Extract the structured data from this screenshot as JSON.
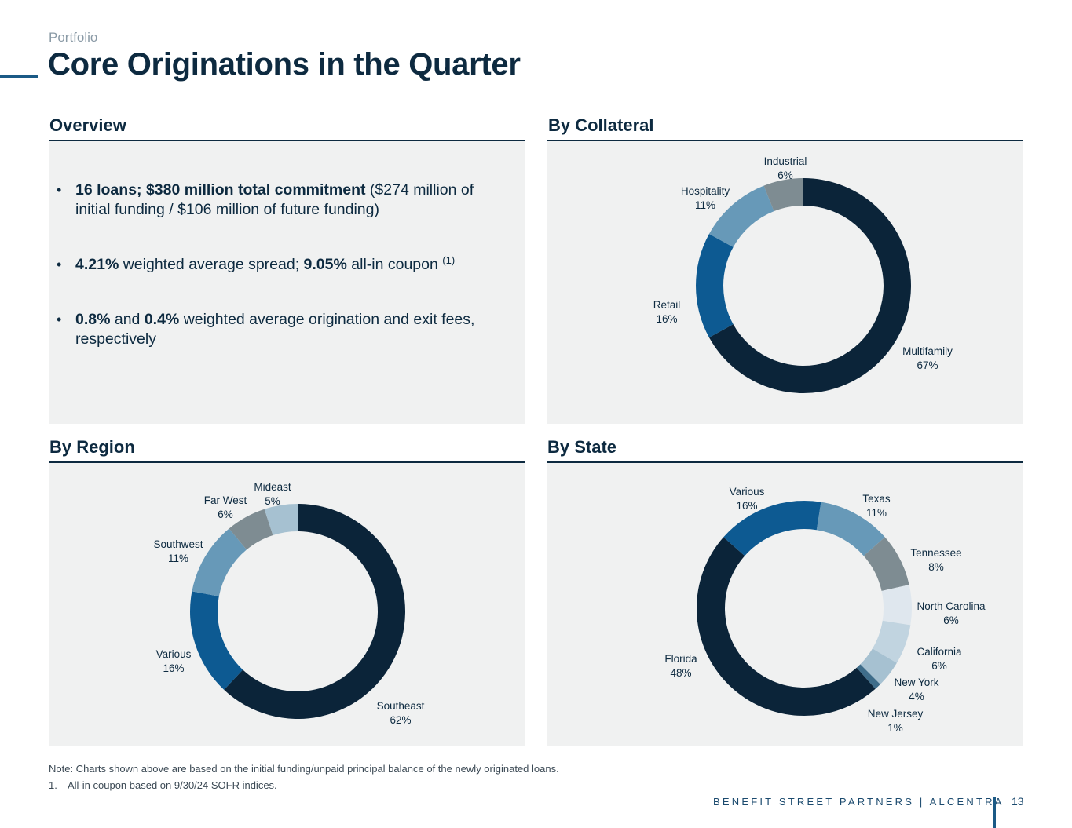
{
  "header": {
    "breadcrumb": "Portfolio",
    "title": "Core Originations in the Quarter"
  },
  "overview": {
    "title": "Overview",
    "bullets": [
      [
        {
          "t": "16 loans; $380 million total commitment",
          "b": true
        },
        {
          "t": " ($274 million of initial funding / $106 million of future funding)",
          "b": false
        }
      ],
      [
        {
          "t": "4.21%",
          "b": true
        },
        {
          "t": " weighted average spread; ",
          "b": false
        },
        {
          "t": "9.05%",
          "b": true
        },
        {
          "t": " all-in coupon ",
          "b": false
        },
        {
          "t": "(1)",
          "sup": true
        }
      ],
      [
        {
          "t": "0.8%",
          "b": true
        },
        {
          "t": " and ",
          "b": false
        },
        {
          "t": "0.4%",
          "b": true
        },
        {
          "t": " weighted average origination and exit fees, respectively",
          "b": false
        }
      ]
    ]
  },
  "chart_data": [
    {
      "type": "pie",
      "title": "By Collateral",
      "categories": [
        "Multifamily",
        "Retail",
        "Hospitality",
        "Industrial"
      ],
      "values": [
        67,
        16,
        11,
        6
      ],
      "labels": [
        "67%",
        "16%",
        "11%",
        "6%"
      ],
      "colors": [
        "#0b2439",
        "#0d5a92",
        "#6799b8",
        "#7e8c92"
      ]
    },
    {
      "type": "pie",
      "title": "By Region",
      "categories": [
        "Southeast",
        "Various",
        "Southwest",
        "Far West",
        "Mideast"
      ],
      "values": [
        62,
        16,
        11,
        6,
        5
      ],
      "labels": [
        "62%",
        "16%",
        "11%",
        "6%",
        "5%"
      ],
      "colors": [
        "#0b2439",
        "#0d5a92",
        "#6799b8",
        "#7e8c92",
        "#a6c1d1"
      ]
    },
    {
      "type": "pie",
      "title": "By State",
      "categories": [
        "Texas",
        "Tennessee",
        "North Carolina",
        "California",
        "New York",
        "New Jersey",
        "Florida",
        "Various"
      ],
      "values": [
        11,
        8,
        6,
        6,
        4,
        1,
        48,
        16
      ],
      "labels": [
        "11%",
        "8%",
        "6%",
        "6%",
        "4%",
        "1%",
        "48%",
        "16%"
      ],
      "colors": [
        "#6799b8",
        "#7e8c92",
        "#dfe7ee",
        "#c1d4e0",
        "#a6c1d1",
        "#3f6d8a",
        "#0b2439",
        "#0d5a92"
      ]
    }
  ],
  "footer": {
    "note": "Note: Charts shown above are based on the initial funding/unpaid principal balance of the newly originated loans.",
    "footnote_num": "1.",
    "footnote": "All-in coupon based on 9/30/24 SOFR indices.",
    "brand": "BENEFIT STREET PARTNERS | ALCENTRA",
    "page": "13"
  }
}
